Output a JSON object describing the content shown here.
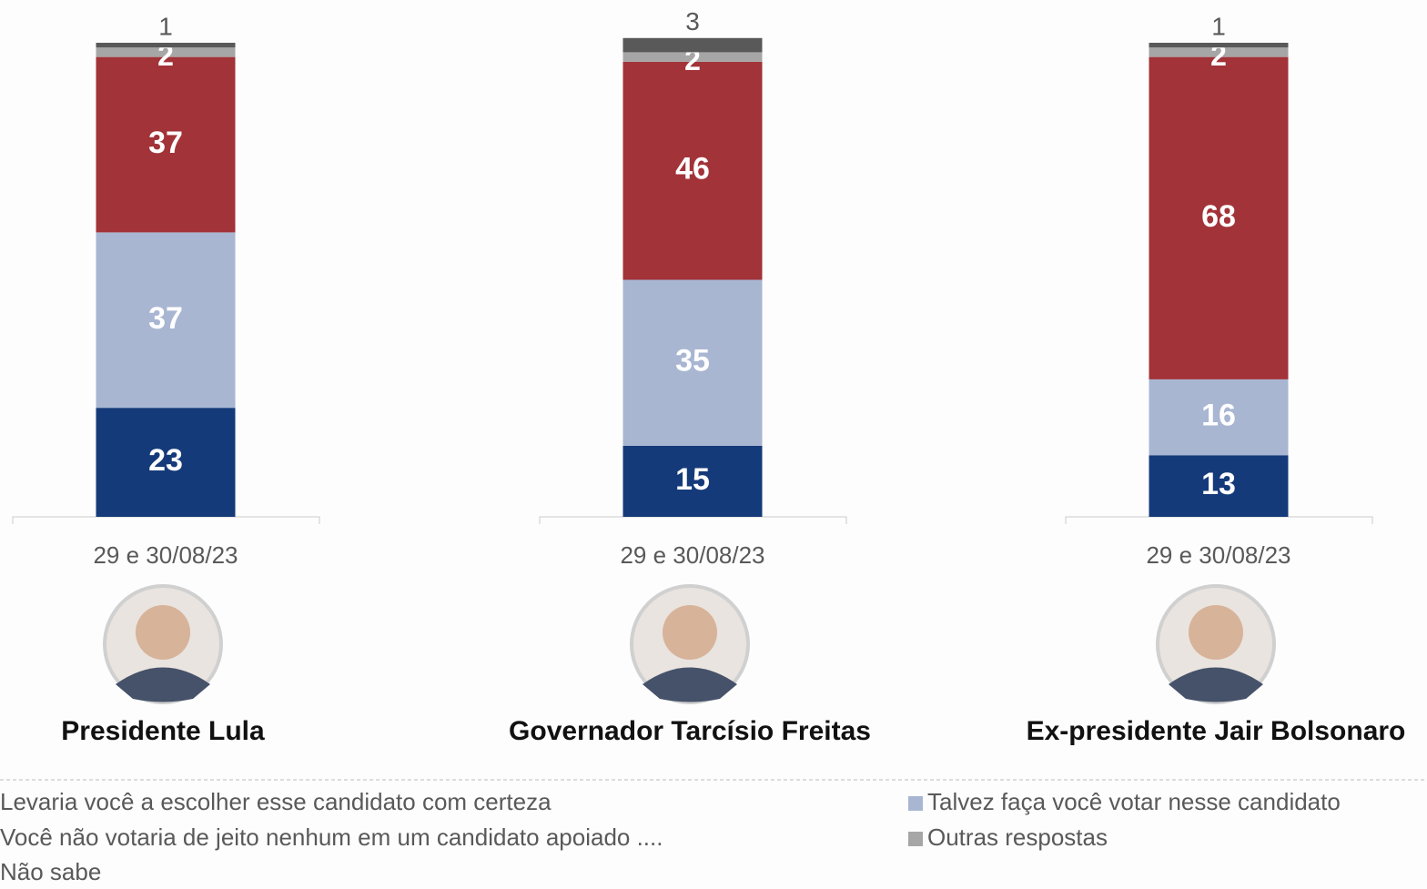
{
  "chart_data": {
    "type": "bar",
    "stacked": true,
    "categories": [
      "Presidente Lula",
      "Governador Tarcísio Freitas",
      "Ex-presidente Jair Bolsonaro"
    ],
    "periods": [
      "29 e 30/08/23",
      "29 e 30/08/23",
      "29 e 30/08/23"
    ],
    "series": [
      {
        "name": "Levaria você a escolher esse candidato com certeza",
        "color": "#153a7a",
        "values": [
          23,
          15,
          13
        ]
      },
      {
        "name": "Talvez faça você votar nesse candidato",
        "color": "#a8b6d2",
        "values": [
          37,
          35,
          16
        ]
      },
      {
        "name": "Você não votaria de jeito nenhum em um candidato apoiado ....",
        "color": "#a23338",
        "values": [
          37,
          46,
          68
        ]
      },
      {
        "name": "Outras respostas",
        "color": "#a6a6a6",
        "values": [
          2,
          2,
          2
        ]
      },
      {
        "name": "Não sabe",
        "color": "#595959",
        "values": [
          1,
          3,
          1
        ]
      }
    ]
  }
}
